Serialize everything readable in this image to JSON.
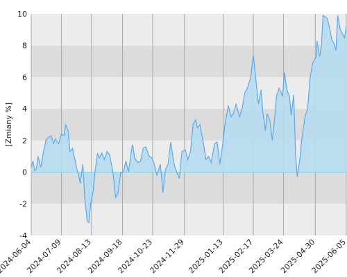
{
  "chart_data": {
    "type": "area",
    "y_label": "[Zmiany %]",
    "series": [
      {
        "color": "#5aa9ec",
        "fill": "#b6dcef",
        "x": [
          "2024-06-04",
          "2024-06-06",
          "2024-06-08",
          "2024-06-10",
          "2024-06-12",
          "2024-06-15",
          "2024-06-18",
          "2024-06-21",
          "2024-06-24",
          "2024-06-27",
          "2024-06-30",
          "2024-07-02",
          "2024-07-06",
          "2024-07-09",
          "2024-07-12",
          "2024-07-14",
          "2024-07-17",
          "2024-07-19",
          "2024-07-22",
          "2024-07-24",
          "2024-07-27",
          "2024-07-29",
          "2024-07-31",
          "2024-08-03",
          "2024-08-05",
          "2024-08-08",
          "2024-08-10",
          "2024-08-12",
          "2024-08-15",
          "2024-08-17",
          "2024-08-20",
          "2024-08-22",
          "2024-08-25",
          "2024-08-28",
          "2024-08-31",
          "2024-09-03",
          "2024-09-07",
          "2024-09-10",
          "2024-09-13",
          "2024-09-16",
          "2024-09-19",
          "2024-09-22",
          "2024-09-25",
          "2024-09-29",
          "2024-09-30",
          "2024-10-02",
          "2024-10-06",
          "2024-10-09",
          "2024-10-12",
          "2024-10-15",
          "2024-10-19",
          "2024-10-22",
          "2024-10-25",
          "2024-10-28",
          "2024-11-01",
          "2024-11-04",
          "2024-11-07",
          "2024-11-10",
          "2024-11-13",
          "2024-11-17",
          "2024-11-20",
          "2024-11-23",
          "2024-11-26",
          "2024-11-30",
          "2024-12-03",
          "2024-12-06",
          "2024-12-09",
          "2024-12-12",
          "2024-12-14",
          "2024-12-17",
          "2024-12-21",
          "2024-12-24",
          "2024-12-27",
          "2024-12-30",
          "2025-01-03",
          "2025-01-06",
          "2025-01-09",
          "2025-01-12",
          "2025-01-15",
          "2025-01-19",
          "2025-01-22",
          "2025-01-25",
          "2025-01-28",
          "2025-02-01",
          "2025-02-04",
          "2025-02-07",
          "2025-02-10",
          "2025-02-14",
          "2025-02-17",
          "2025-02-20",
          "2025-02-23",
          "2025-02-26",
          "2025-02-28",
          "2025-03-03",
          "2025-03-05",
          "2025-03-08",
          "2025-03-11",
          "2025-03-13",
          "2025-03-16",
          "2025-03-19",
          "2025-03-23",
          "2025-03-25",
          "2025-03-28",
          "2025-03-31",
          "2025-04-02",
          "2025-04-05",
          "2025-04-07",
          "2025-04-09",
          "2025-04-12",
          "2025-04-14",
          "2025-04-18",
          "2025-04-21",
          "2025-04-24",
          "2025-04-27",
          "2025-05-01",
          "2025-05-02",
          "2025-05-05",
          "2025-05-07",
          "2025-05-09",
          "2025-05-12",
          "2025-05-14",
          "2025-05-17",
          "2025-05-19",
          "2025-05-22",
          "2025-05-24",
          "2025-05-26",
          "2025-05-29",
          "2025-05-31",
          "2025-06-03",
          "2025-06-05"
        ],
        "values": [
          0.3,
          0.7,
          0.1,
          0.2,
          1.0,
          0.3,
          1.2,
          2.0,
          2.2,
          2.3,
          1.8,
          2.1,
          1.8,
          2.4,
          2.3,
          3.0,
          2.6,
          1.3,
          1.5,
          1.0,
          0.2,
          -0.2,
          -0.7,
          0.5,
          -1.5,
          -3.1,
          -3.2,
          -2.0,
          -1.2,
          0.0,
          1.2,
          0.9,
          1.2,
          0.8,
          1.3,
          1.1,
          0.0,
          -1.6,
          -1.3,
          0.0,
          0.0,
          0.7,
          0.0,
          1.6,
          1.7,
          0.9,
          0.6,
          0.7,
          1.5,
          1.6,
          1.0,
          0.9,
          0.5,
          -0.2,
          0.5,
          -1.3,
          0.2,
          0.5,
          1.9,
          0.5,
          0.0,
          -0.4,
          1.3,
          1.4,
          0.8,
          1.3,
          3.0,
          3.3,
          2.8,
          3.0,
          1.8,
          0.8,
          1.0,
          0.6,
          1.8,
          1.9,
          0.5,
          1.6,
          3.0,
          4.2,
          3.5,
          3.7,
          4.3,
          3.5,
          4.0,
          5.0,
          5.3,
          6.0,
          7.4,
          5.8,
          4.3,
          5.2,
          3.8,
          2.6,
          3.7,
          3.3,
          2.0,
          3.0,
          4.8,
          5.3,
          4.8,
          6.3,
          5.2,
          4.8,
          3.6,
          4.9,
          1.2,
          -0.3,
          0.8,
          2.0,
          3.5,
          4.0,
          6.0,
          6.9,
          7.3,
          8.3,
          7.3,
          7.9,
          9.9,
          9.8,
          9.7,
          9.0,
          8.4,
          8.1,
          7.7,
          9.9,
          9.0,
          8.8,
          8.5,
          9.2
        ]
      }
    ],
    "xlim": [
      "2024-06-04",
      "2025-06-05"
    ],
    "xticks": [
      "2024-06-04",
      "2024-07-09",
      "2024-08-13",
      "2024-09-18",
      "2024-10-23",
      "2024-11-29",
      "2025-01-13",
      "2025-02-17",
      "2025-03-24",
      "2025-04-30",
      "2025-06-05"
    ],
    "ylim": [
      -4,
      10
    ],
    "yticks": [
      -4,
      -2,
      0,
      2,
      4,
      6,
      8,
      10
    ],
    "grid": true
  }
}
